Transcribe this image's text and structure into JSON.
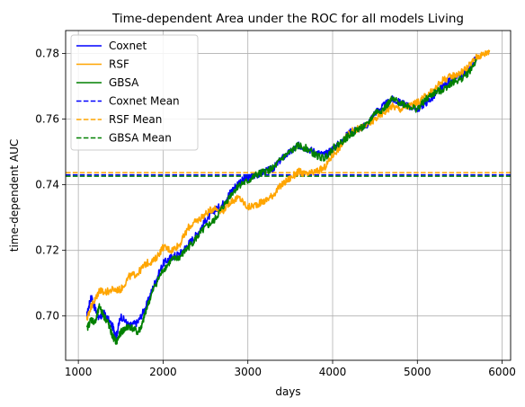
{
  "chart_data": {
    "type": "line",
    "title": "Time-dependent Area under the ROC for all models Living",
    "xlabel": "days",
    "ylabel": "time-dependent AUC",
    "xlim": [
      850,
      6100
    ],
    "ylim": [
      0.6865,
      0.787
    ],
    "xticks": [
      1000,
      2000,
      3000,
      4000,
      5000,
      6000
    ],
    "yticks": [
      0.7,
      0.72,
      0.74,
      0.76,
      0.78
    ],
    "grid": true,
    "legend_position": "top-left",
    "series": [
      {
        "name": "Coxnet",
        "color": "#0000ff",
        "style": "solid",
        "x": [
          1100,
          1150,
          1200,
          1250,
          1300,
          1400,
          1450,
          1500,
          1600,
          1700,
          1800,
          1900,
          2000,
          2100,
          2200,
          2300,
          2400,
          2500,
          2600,
          2700,
          2800,
          2900,
          3000,
          3100,
          3200,
          3300,
          3400,
          3500,
          3600,
          3700,
          3800,
          3900,
          4000,
          4100,
          4200,
          4300,
          4400,
          4500,
          4600,
          4700,
          4800,
          4900,
          5000,
          5100,
          5200,
          5300,
          5400,
          5500,
          5600,
          5700
        ],
        "values": [
          0.7,
          0.706,
          0.702,
          0.699,
          0.701,
          0.697,
          0.694,
          0.7,
          0.697,
          0.698,
          0.703,
          0.71,
          0.716,
          0.718,
          0.719,
          0.722,
          0.725,
          0.729,
          0.732,
          0.734,
          0.738,
          0.741,
          0.742,
          0.743,
          0.744,
          0.745,
          0.748,
          0.75,
          0.752,
          0.751,
          0.75,
          0.749,
          0.751,
          0.753,
          0.756,
          0.757,
          0.758,
          0.762,
          0.764,
          0.766,
          0.765,
          0.764,
          0.763,
          0.765,
          0.767,
          0.77,
          0.772,
          0.773,
          0.775,
          0.779
        ]
      },
      {
        "name": "RSF",
        "color": "#ffa500",
        "style": "solid",
        "x": [
          1100,
          1150,
          1200,
          1250,
          1300,
          1400,
          1500,
          1600,
          1700,
          1800,
          1900,
          2000,
          2100,
          2200,
          2300,
          2400,
          2500,
          2600,
          2700,
          2800,
          2900,
          3000,
          3100,
          3200,
          3300,
          3400,
          3500,
          3600,
          3700,
          3800,
          3900,
          4000,
          4100,
          4200,
          4300,
          4400,
          4500,
          4600,
          4700,
          4800,
          4900,
          5000,
          5100,
          5200,
          5300,
          5400,
          5500,
          5600,
          5700,
          5800,
          5850
        ],
        "values": [
          0.699,
          0.703,
          0.705,
          0.708,
          0.707,
          0.708,
          0.708,
          0.712,
          0.713,
          0.716,
          0.717,
          0.721,
          0.72,
          0.722,
          0.727,
          0.729,
          0.731,
          0.733,
          0.732,
          0.735,
          0.736,
          0.733,
          0.734,
          0.735,
          0.737,
          0.74,
          0.742,
          0.744,
          0.743,
          0.744,
          0.745,
          0.749,
          0.752,
          0.756,
          0.757,
          0.758,
          0.76,
          0.762,
          0.764,
          0.763,
          0.764,
          0.765,
          0.767,
          0.769,
          0.772,
          0.773,
          0.774,
          0.776,
          0.779,
          0.78,
          0.781
        ]
      },
      {
        "name": "GBSA",
        "color": "#008000",
        "style": "solid",
        "x": [
          1100,
          1150,
          1200,
          1250,
          1300,
          1350,
          1400,
          1450,
          1500,
          1550,
          1600,
          1700,
          1750,
          1800,
          1900,
          2000,
          2100,
          2200,
          2300,
          2400,
          2500,
          2600,
          2700,
          2800,
          2900,
          3000,
          3100,
          3200,
          3300,
          3400,
          3500,
          3600,
          3700,
          3800,
          3900,
          4000,
          4100,
          4200,
          4300,
          4400,
          4500,
          4600,
          4700,
          4800,
          4900,
          5000,
          5100,
          5200,
          5300,
          5400,
          5500,
          5600,
          5700
        ],
        "values": [
          0.696,
          0.699,
          0.698,
          0.703,
          0.7,
          0.698,
          0.694,
          0.692,
          0.695,
          0.696,
          0.697,
          0.695,
          0.697,
          0.702,
          0.709,
          0.714,
          0.717,
          0.718,
          0.721,
          0.724,
          0.727,
          0.729,
          0.733,
          0.737,
          0.74,
          0.741,
          0.743,
          0.744,
          0.745,
          0.748,
          0.75,
          0.752,
          0.751,
          0.749,
          0.748,
          0.751,
          0.753,
          0.755,
          0.757,
          0.758,
          0.762,
          0.763,
          0.766,
          0.765,
          0.764,
          0.763,
          0.766,
          0.768,
          0.769,
          0.771,
          0.772,
          0.774,
          0.778
        ]
      },
      {
        "name": "Coxnet Mean",
        "color": "#0000ff",
        "style": "dashed",
        "constant": 0.743
      },
      {
        "name": "RSF Mean",
        "color": "#ffa500",
        "style": "dashed",
        "constant": 0.7437
      },
      {
        "name": "GBSA Mean",
        "color": "#008000",
        "style": "dashed",
        "constant": 0.7426
      }
    ]
  }
}
